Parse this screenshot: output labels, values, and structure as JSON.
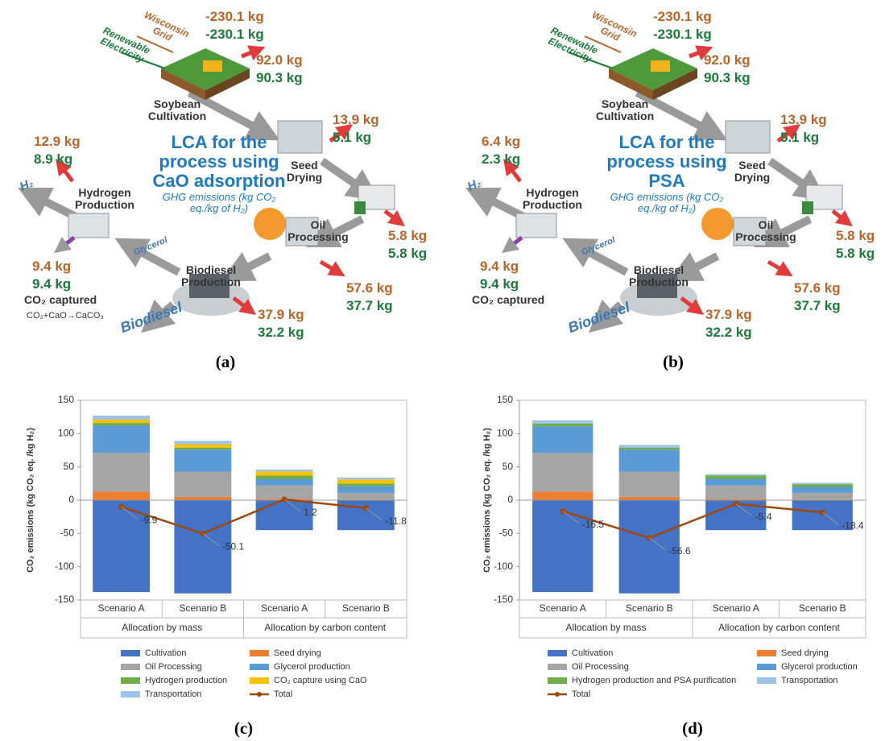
{
  "diagrams": [
    {
      "panel": "(a)",
      "title": "LCA for the process using CaO adsorption",
      "subtitle": "GHG emissions (kg CO₂ eq./kg of H₂)",
      "electricity": [
        "Wisconsin Grid",
        "Renewable Electricity"
      ],
      "credit": {
        "wisconsin": "-230.1 kg",
        "renewable": "-230.1 kg"
      },
      "stages": [
        {
          "name": "Soybean Cultivation",
          "wisconsin": "92.0 kg",
          "renewable": "90.3 kg"
        },
        {
          "name": "Seed Drying",
          "wisconsin": "13.9 kg",
          "renewable": "5.1 kg"
        },
        {
          "name": "Oil Processing",
          "wisconsin": "57.6 kg",
          "renewable": "37.7 kg"
        },
        {
          "name": "Biodiesel Production",
          "wisconsin": "37.9 kg",
          "renewable": "32.2 kg"
        },
        {
          "name": "Hydrogen Production",
          "wisconsin": "12.9 kg",
          "renewable": "8.9 kg"
        }
      ],
      "transport": {
        "wisconsin": "5.8 kg",
        "renewable": "5.8 kg"
      },
      "products": [
        "H₂",
        "Glycerol",
        "Biodiesel"
      ],
      "capture": {
        "wisconsin": "9.4 kg",
        "renewable": "9.4 kg",
        "label": "CO₂ captured",
        "reaction": "CO₂+CaO→CaCO₃"
      }
    },
    {
      "panel": "(b)",
      "title": "LCA for the process using PSA",
      "subtitle": "GHG emissions (kg CO₂ eq./kg of H₂)",
      "electricity": [
        "Wisconsin Grid",
        "Renewable Electricity"
      ],
      "credit": {
        "wisconsin": "-230.1 kg",
        "renewable": "-230.1 kg"
      },
      "stages": [
        {
          "name": "Soybean Cultivation",
          "wisconsin": "92.0 kg",
          "renewable": "90.3 kg"
        },
        {
          "name": "Seed Drying",
          "wisconsin": "13.9 kg",
          "renewable": "5.1 kg"
        },
        {
          "name": "Oil Processing",
          "wisconsin": "57.6 kg",
          "renewable": "37.7 kg"
        },
        {
          "name": "Biodiesel Production",
          "wisconsin": "37.9 kg",
          "renewable": "32.2 kg"
        },
        {
          "name": "Hydrogen Production",
          "wisconsin": "6.4 kg",
          "renewable": "2.3 kg"
        }
      ],
      "transport": {
        "wisconsin": "5.8 kg",
        "renewable": "5.8 kg"
      },
      "products": [
        "H₂",
        "Glycerol",
        "Biodiesel"
      ],
      "capture": {
        "wisconsin": "9.4 kg",
        "renewable": "9.4 kg",
        "label": "CO₂ captured"
      }
    }
  ],
  "chart_data": [
    {
      "type": "bar",
      "stacked": true,
      "panel": "(c)",
      "ylabel": "CO₂ emissions (kg CO₂ eq. /kg H₂)",
      "categories": [
        "Scenario A",
        "Scenario B",
        "Scenario A",
        "Scenario B"
      ],
      "groups": [
        "Allocation by mass",
        "Allocation by carbon content"
      ],
      "ylim": [
        -150,
        150
      ],
      "yticks": [
        -150,
        -100,
        -50,
        0,
        50,
        100,
        150
      ],
      "grid": false,
      "series": [
        {
          "name": "Cultivation",
          "color": "#4472c4",
          "values": [
            -138,
            -140,
            -45,
            -45
          ]
        },
        {
          "name": "Seed drying",
          "color": "#ed7d31",
          "values": [
            13,
            5,
            2,
            1
          ]
        },
        {
          "name": "Oil Processing",
          "color": "#a5a5a5",
          "values": [
            58,
            38,
            20,
            10
          ]
        },
        {
          "name": "Glycerol production",
          "color": "#5b9bd5",
          "values": [
            41,
            33,
            10,
            10
          ]
        },
        {
          "name": "Hydrogen production",
          "color": "#70ad47",
          "values": [
            4,
            3,
            5,
            4
          ]
        },
        {
          "name": "CO₂ capture using CaO",
          "color": "#ffc000",
          "values": [
            5,
            5,
            6,
            6
          ]
        },
        {
          "name": "Transportation",
          "color": "#9dc3e6",
          "values": [
            6,
            5,
            3,
            3
          ]
        },
        {
          "name": "Total",
          "color": "#9e480e",
          "type": "line",
          "values": [
            -9.9,
            -50.1,
            1.2,
            -11.8
          ]
        }
      ]
    },
    {
      "type": "bar",
      "stacked": true,
      "panel": "(d)",
      "ylabel": "CO₂ emissions (kg CO₂ eq. /kg H₂)",
      "categories": [
        "Scenario A",
        "Scenario B",
        "Scenario A",
        "Scenario B"
      ],
      "groups": [
        "Allocation by mass",
        "Allocation by carbon content"
      ],
      "ylim": [
        -150,
        150
      ],
      "yticks": [
        -150,
        -100,
        -50,
        0,
        50,
        100,
        150
      ],
      "grid": false,
      "series": [
        {
          "name": "Cultivation",
          "color": "#4472c4",
          "values": [
            -138,
            -140,
            -45,
            -45
          ]
        },
        {
          "name": "Seed drying",
          "color": "#ed7d31",
          "values": [
            13,
            5,
            2,
            1
          ]
        },
        {
          "name": "Oil Processing",
          "color": "#a5a5a5",
          "values": [
            58,
            38,
            20,
            10
          ]
        },
        {
          "name": "Glycerol production",
          "color": "#5b9bd5",
          "values": [
            40,
            33,
            10,
            9
          ]
        },
        {
          "name": "Hydrogen production and PSA purification",
          "color": "#70ad47",
          "values": [
            4,
            3,
            5,
            4
          ]
        },
        {
          "name": "Transportation",
          "color": "#9dc3e6",
          "values": [
            5,
            4,
            2,
            2
          ]
        },
        {
          "name": "Total",
          "color": "#9e480e",
          "type": "line",
          "values": [
            -16.5,
            -56.6,
            -5.4,
            -18.4
          ]
        }
      ]
    }
  ]
}
